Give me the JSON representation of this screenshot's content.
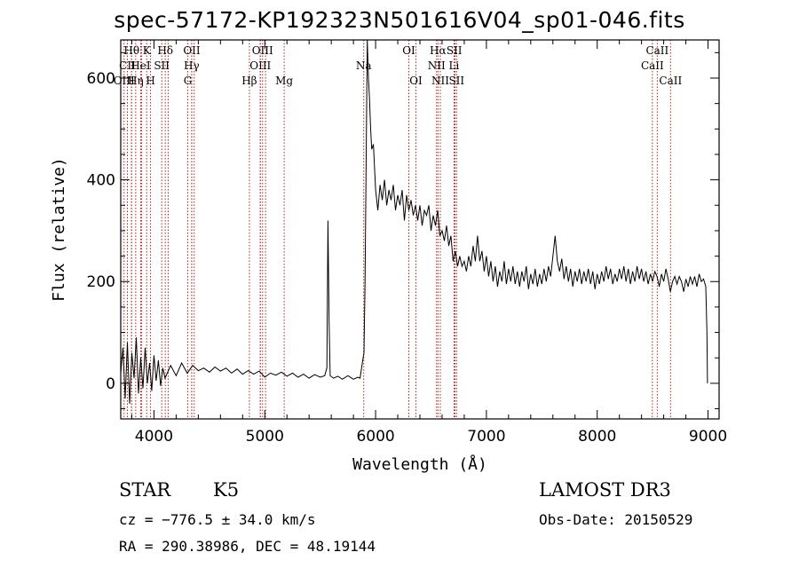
{
  "chart_data": {
    "type": "line",
    "title": "spec-57172-KP192323N501616V04_sp01-046.fits",
    "xlabel": "Wavelength (Å)",
    "ylabel": "Flux (relative)",
    "xlim": [
      3700,
      9100
    ],
    "ylim": [
      -70,
      675
    ],
    "xticks": [
      4000,
      5000,
      6000,
      7000,
      8000,
      9000
    ],
    "yticks": [
      0,
      200,
      400,
      600
    ],
    "grid": false,
    "line_color": "#000000",
    "marker_color": "#b22222",
    "series": [
      {
        "name": "flux",
        "points": [
          [
            3700,
            20
          ],
          [
            3720,
            70
          ],
          [
            3740,
            -30
          ],
          [
            3760,
            80
          ],
          [
            3780,
            -40
          ],
          [
            3800,
            60
          ],
          [
            3820,
            10
          ],
          [
            3840,
            90
          ],
          [
            3860,
            -20
          ],
          [
            3880,
            50
          ],
          [
            3900,
            -10
          ],
          [
            3920,
            70
          ],
          [
            3940,
            0
          ],
          [
            3960,
            40
          ],
          [
            3980,
            -15
          ],
          [
            4000,
            55
          ],
          [
            4020,
            5
          ],
          [
            4040,
            45
          ],
          [
            4060,
            -5
          ],
          [
            4080,
            30
          ],
          [
            4100,
            10
          ],
          [
            4150,
            35
          ],
          [
            4200,
            15
          ],
          [
            4250,
            40
          ],
          [
            4300,
            20
          ],
          [
            4350,
            35
          ],
          [
            4400,
            25
          ],
          [
            4450,
            30
          ],
          [
            4500,
            22
          ],
          [
            4550,
            32
          ],
          [
            4600,
            24
          ],
          [
            4650,
            30
          ],
          [
            4700,
            20
          ],
          [
            4750,
            28
          ],
          [
            4800,
            18
          ],
          [
            4850,
            25
          ],
          [
            4900,
            18
          ],
          [
            4950,
            24
          ],
          [
            5000,
            12
          ],
          [
            5050,
            20
          ],
          [
            5100,
            16
          ],
          [
            5150,
            22
          ],
          [
            5200,
            14
          ],
          [
            5250,
            20
          ],
          [
            5300,
            12
          ],
          [
            5350,
            18
          ],
          [
            5400,
            10
          ],
          [
            5450,
            17
          ],
          [
            5500,
            12
          ],
          [
            5540,
            15
          ],
          [
            5560,
            30
          ],
          [
            5570,
            320
          ],
          [
            5580,
            120
          ],
          [
            5590,
            15
          ],
          [
            5620,
            10
          ],
          [
            5660,
            14
          ],
          [
            5700,
            8
          ],
          [
            5750,
            15
          ],
          [
            5800,
            8
          ],
          [
            5840,
            12
          ],
          [
            5860,
            10
          ],
          [
            5880,
            40
          ],
          [
            5895,
            60
          ],
          [
            5905,
            200
          ],
          [
            5915,
            450
          ],
          [
            5925,
            700
          ],
          [
            5935,
            600
          ],
          [
            5945,
            560
          ],
          [
            5955,
            500
          ],
          [
            5965,
            460
          ],
          [
            5980,
            470
          ],
          [
            6000,
            380
          ],
          [
            6020,
            340
          ],
          [
            6040,
            390
          ],
          [
            6060,
            360
          ],
          [
            6080,
            400
          ],
          [
            6100,
            350
          ],
          [
            6120,
            380
          ],
          [
            6140,
            360
          ],
          [
            6160,
            390
          ],
          [
            6180,
            340
          ],
          [
            6200,
            370
          ],
          [
            6220,
            350
          ],
          [
            6240,
            380
          ],
          [
            6260,
            320
          ],
          [
            6280,
            370
          ],
          [
            6300,
            340
          ],
          [
            6320,
            360
          ],
          [
            6340,
            330
          ],
          [
            6360,
            350
          ],
          [
            6380,
            320
          ],
          [
            6400,
            350
          ],
          [
            6420,
            310
          ],
          [
            6440,
            340
          ],
          [
            6460,
            330
          ],
          [
            6480,
            350
          ],
          [
            6500,
            300
          ],
          [
            6520,
            330
          ],
          [
            6540,
            310
          ],
          [
            6560,
            340
          ],
          [
            6580,
            290
          ],
          [
            6600,
            300
          ],
          [
            6620,
            280
          ],
          [
            6640,
            310
          ],
          [
            6660,
            270
          ],
          [
            6680,
            290
          ],
          [
            6700,
            240
          ],
          [
            6720,
            260
          ],
          [
            6740,
            230
          ],
          [
            6760,
            250
          ],
          [
            6780,
            230
          ],
          [
            6800,
            240
          ],
          [
            6820,
            220
          ],
          [
            6840,
            250
          ],
          [
            6860,
            230
          ],
          [
            6880,
            270
          ],
          [
            6900,
            240
          ],
          [
            6920,
            290
          ],
          [
            6940,
            240
          ],
          [
            6960,
            260
          ],
          [
            6980,
            220
          ],
          [
            7000,
            250
          ],
          [
            7020,
            210
          ],
          [
            7040,
            240
          ],
          [
            7060,
            200
          ],
          [
            7080,
            230
          ],
          [
            7100,
            190
          ],
          [
            7120,
            220
          ],
          [
            7140,
            200
          ],
          [
            7160,
            240
          ],
          [
            7180,
            195
          ],
          [
            7200,
            225
          ],
          [
            7220,
            200
          ],
          [
            7240,
            230
          ],
          [
            7260,
            195
          ],
          [
            7280,
            220
          ],
          [
            7300,
            190
          ],
          [
            7320,
            220
          ],
          [
            7340,
            200
          ],
          [
            7360,
            230
          ],
          [
            7380,
            185
          ],
          [
            7400,
            215
          ],
          [
            7420,
            195
          ],
          [
            7440,
            225
          ],
          [
            7460,
            190
          ],
          [
            7480,
            215
          ],
          [
            7500,
            195
          ],
          [
            7520,
            225
          ],
          [
            7540,
            200
          ],
          [
            7560,
            230
          ],
          [
            7580,
            210
          ],
          [
            7600,
            250
          ],
          [
            7620,
            290
          ],
          [
            7640,
            240
          ],
          [
            7660,
            220
          ],
          [
            7680,
            245
          ],
          [
            7700,
            205
          ],
          [
            7720,
            230
          ],
          [
            7740,
            200
          ],
          [
            7760,
            225
          ],
          [
            7780,
            190
          ],
          [
            7800,
            220
          ],
          [
            7820,
            200
          ],
          [
            7840,
            225
          ],
          [
            7860,
            195
          ],
          [
            7880,
            220
          ],
          [
            7900,
            200
          ],
          [
            7920,
            225
          ],
          [
            7940,
            195
          ],
          [
            7960,
            220
          ],
          [
            7980,
            185
          ],
          [
            8000,
            215
          ],
          [
            8020,
            195
          ],
          [
            8040,
            220
          ],
          [
            8060,
            200
          ],
          [
            8080,
            230
          ],
          [
            8100,
            205
          ],
          [
            8120,
            225
          ],
          [
            8140,
            195
          ],
          [
            8160,
            215
          ],
          [
            8180,
            200
          ],
          [
            8200,
            225
          ],
          [
            8220,
            205
          ],
          [
            8240,
            230
          ],
          [
            8260,
            200
          ],
          [
            8280,
            225
          ],
          [
            8300,
            195
          ],
          [
            8320,
            220
          ],
          [
            8340,
            200
          ],
          [
            8360,
            230
          ],
          [
            8380,
            205
          ],
          [
            8400,
            225
          ],
          [
            8420,
            200
          ],
          [
            8440,
            220
          ],
          [
            8460,
            195
          ],
          [
            8480,
            215
          ],
          [
            8500,
            200
          ],
          [
            8520,
            220
          ],
          [
            8540,
            210
          ],
          [
            8560,
            190
          ],
          [
            8580,
            215
          ],
          [
            8600,
            200
          ],
          [
            8620,
            225
          ],
          [
            8640,
            205
          ],
          [
            8660,
            180
          ],
          [
            8680,
            200
          ],
          [
            8700,
            210
          ],
          [
            8720,
            195
          ],
          [
            8740,
            210
          ],
          [
            8760,
            200
          ],
          [
            8780,
            180
          ],
          [
            8800,
            205
          ],
          [
            8820,
            190
          ],
          [
            8840,
            210
          ],
          [
            8860,
            195
          ],
          [
            8880,
            210
          ],
          [
            8900,
            190
          ],
          [
            8920,
            215
          ],
          [
            8940,
            200
          ],
          [
            8960,
            205
          ],
          [
            8980,
            190
          ],
          [
            8990,
            100
          ],
          [
            8995,
            0
          ]
        ]
      }
    ],
    "line_markers": [
      {
        "label": "Hθ",
        "wavelength": 3798,
        "row": 1
      },
      {
        "label": "K",
        "wavelength": 3934,
        "row": 1
      },
      {
        "label": "Hδ",
        "wavelength": 4102,
        "row": 1
      },
      {
        "label": "OII",
        "wavelength": 4341,
        "row": 1
      },
      {
        "label": "OIII",
        "wavelength": 4980,
        "row": 1
      },
      {
        "label": "Hα",
        "wavelength": 6563,
        "row": 1
      },
      {
        "label": "SII",
        "wavelength": 6710,
        "row": 1
      },
      {
        "label": "OI",
        "wavelength": 6300,
        "row": 1
      },
      {
        "label": "CaII",
        "wavelength": 8542,
        "row": 1
      },
      {
        "label": "CII",
        "wavelength": 3760,
        "row": 2
      },
      {
        "label": "HeI",
        "wavelength": 3880,
        "row": 2
      },
      {
        "label": "SII",
        "wavelength": 4070,
        "row": 2
      },
      {
        "label": "Hγ",
        "wavelength": 4340,
        "row": 2
      },
      {
        "label": "OIII",
        "wavelength": 4960,
        "row": 2
      },
      {
        "label": "Na",
        "wavelength": 5893,
        "row": 2
      },
      {
        "label": "NII",
        "wavelength": 6550,
        "row": 2
      },
      {
        "label": "Li",
        "wavelength": 6708,
        "row": 2
      },
      {
        "label": "CaII",
        "wavelength": 8498,
        "row": 2
      },
      {
        "label": "OIII",
        "wavelength": 3730,
        "row": 3
      },
      {
        "label": "Hη",
        "wavelength": 3835,
        "row": 3
      },
      {
        "label": "H",
        "wavelength": 3969,
        "row": 3
      },
      {
        "label": "G",
        "wavelength": 4305,
        "row": 3
      },
      {
        "label": "Hβ",
        "wavelength": 4861,
        "row": 3
      },
      {
        "label": "Mg",
        "wavelength": 5175,
        "row": 3
      },
      {
        "label": "OI",
        "wavelength": 6364,
        "row": 3
      },
      {
        "label": "NII",
        "wavelength": 6584,
        "row": 3
      },
      {
        "label": "SII",
        "wavelength": 6731,
        "row": 3
      },
      {
        "label": "CaII",
        "wavelength": 8662,
        "row": 3
      }
    ],
    "extra_marker_lines": [
      3797,
      3889,
      4128,
      4363,
      4959,
      5007,
      6300,
      6717
    ]
  },
  "info": {
    "object_type": "STAR",
    "subclass": "K5",
    "survey": "LAMOST DR3",
    "cz": "cz = −776.5 ± 34.0 km/s",
    "obs_date": "Obs-Date: 20150529",
    "coords": "RA = 290.38986, DEC =  48.19144"
  }
}
